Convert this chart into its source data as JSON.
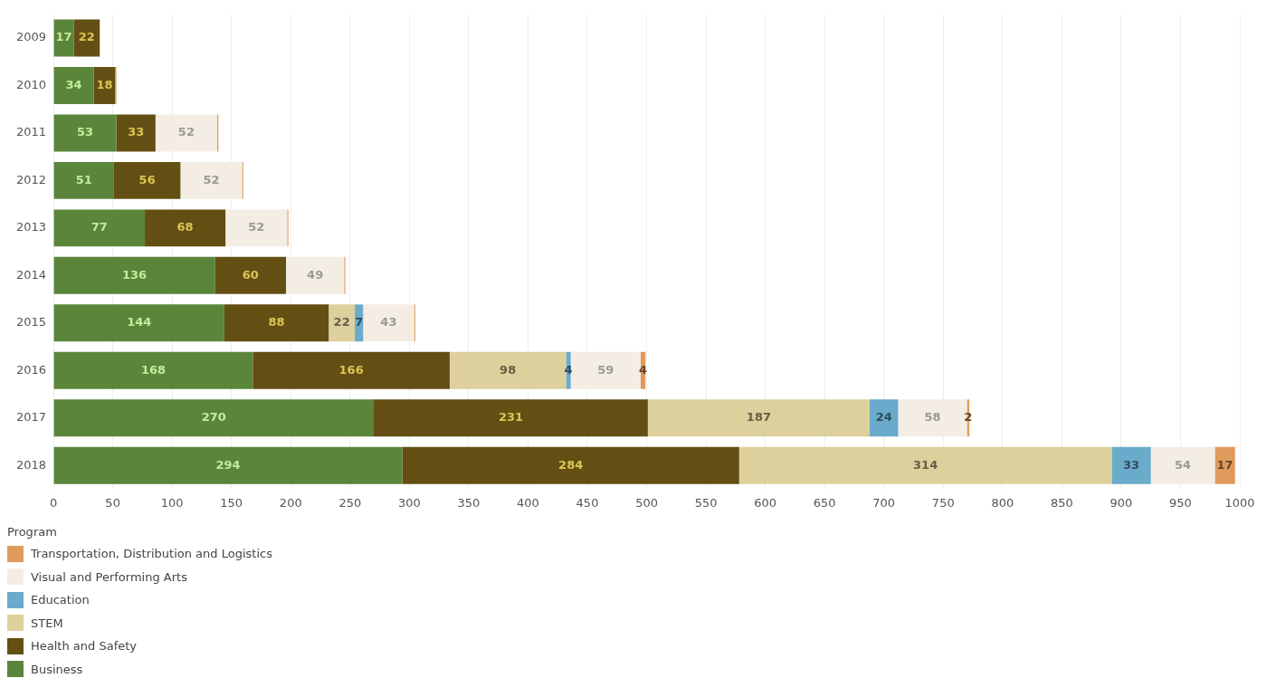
{
  "chart_data": {
    "type": "bar",
    "orientation": "horizontal",
    "stacked": true,
    "categories": [
      "2009",
      "2010",
      "2011",
      "2012",
      "2013",
      "2014",
      "2015",
      "2016",
      "2017",
      "2018"
    ],
    "series": [
      {
        "name": "Business",
        "color": "#5a853a",
        "values": [
          17,
          34,
          53,
          51,
          77,
          136,
          144,
          168,
          270,
          294
        ],
        "value_labels": [
          "17",
          "34",
          "53",
          "51",
          "77",
          "136",
          "144",
          "168",
          "270",
          "294"
        ]
      },
      {
        "name": "Health and Safety",
        "color": "#634f13",
        "values": [
          22,
          18,
          33,
          56,
          68,
          60,
          88,
          166,
          231,
          284
        ],
        "value_labels": [
          "22",
          "18",
          "33",
          "56",
          "68",
          "60",
          "88",
          "166",
          "231",
          "284"
        ]
      },
      {
        "name": "STEM",
        "color": "#ddd09c",
        "values": [
          null,
          null,
          null,
          null,
          null,
          null,
          22,
          98,
          187,
          314
        ],
        "value_labels": [
          null,
          null,
          null,
          null,
          null,
          null,
          "22",
          "98",
          "187",
          "314"
        ]
      },
      {
        "name": "Education",
        "color": "#6aaacb",
        "values": [
          null,
          null,
          null,
          null,
          null,
          null,
          7,
          4,
          24,
          33
        ],
        "value_labels": [
          null,
          null,
          null,
          null,
          null,
          null,
          "7",
          "4",
          "24",
          "33"
        ]
      },
      {
        "name": "Visual and Performing Arts",
        "color": "#f3ede3",
        "values": [
          null,
          null,
          52,
          52,
          52,
          49,
          43,
          59,
          58,
          54
        ],
        "value_labels": [
          null,
          null,
          "52",
          "52",
          "52",
          "49",
          "43",
          "59",
          "58",
          "54"
        ]
      },
      {
        "name": "Transportation, Distribution and Logistics",
        "color": "#e09a5b",
        "values": [
          null,
          1,
          1,
          1,
          1,
          1,
          1,
          4,
          2,
          17
        ],
        "value_labels": [
          null,
          null,
          null,
          null,
          null,
          null,
          null,
          "4",
          "2",
          "17"
        ]
      }
    ],
    "xlim": [
      0,
      1000
    ],
    "xticks": [
      0,
      50,
      100,
      150,
      200,
      250,
      300,
      350,
      400,
      450,
      500,
      550,
      600,
      650,
      700,
      750,
      800,
      850,
      900,
      950,
      1000
    ],
    "grid": "x",
    "legend": "bottom left",
    "legend_title": "Program"
  }
}
